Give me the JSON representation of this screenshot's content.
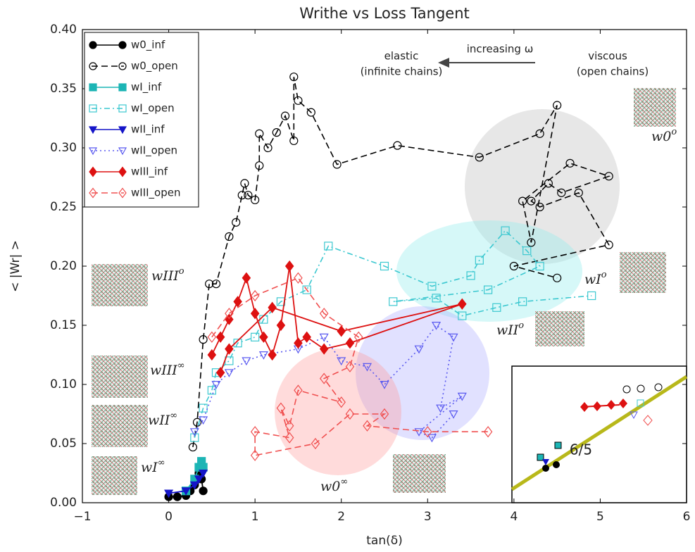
{
  "chart_data": {
    "type": "line",
    "title": "Writhe vs Loss Tangent",
    "x_label": "tan(δ)",
    "y_label": "< |Wr| >",
    "xlim": [
      -1,
      6
    ],
    "ylim": [
      0,
      0.4
    ],
    "xticks": [
      {
        "value": -1,
        "label": "−1"
      },
      0,
      1,
      2,
      3,
      4,
      5,
      6
    ],
    "yticks": [
      {
        "value": 0,
        "label": "0.00"
      },
      {
        "value": 0.05,
        "label": "0.05"
      },
      {
        "value": 0.1,
        "label": "0.10"
      },
      {
        "value": 0.15,
        "label": "0.15"
      },
      {
        "value": 0.2,
        "label": "0.20"
      },
      {
        "value": 0.25,
        "label": "0.25"
      },
      {
        "value": 0.3,
        "label": "0.30"
      },
      {
        "value": 0.35,
        "label": "0.35"
      },
      {
        "value": 0.4,
        "label": "0.40"
      }
    ],
    "legend": "upper left",
    "series": [
      {
        "name": "w0_inf",
        "color": "#000000",
        "marker": "circle",
        "filled": true,
        "linestyle": "solid",
        "x": [
          0,
          0.1,
          0.2,
          0.25,
          0.3,
          0.32,
          0.35,
          0.38,
          0.4
        ],
        "values": [
          0.005,
          0.005,
          0.006,
          0.01,
          0.015,
          0.02,
          0.025,
          0.02,
          0.01
        ]
      },
      {
        "name": "w0_open",
        "color": "#000000",
        "marker": "circle",
        "filled": false,
        "linestyle": "dashed",
        "x": [
          0.28,
          0.33,
          0.4,
          0.47,
          0.55,
          0.7,
          0.78,
          0.85,
          0.88,
          0.92,
          1.0,
          1.05,
          1.05,
          1.15,
          1.25,
          1.35,
          1.45,
          1.45,
          1.5,
          1.65,
          1.95,
          2.65,
          3.6,
          4.3,
          4.5,
          4.2,
          4.1,
          4.65,
          5.1,
          4.55,
          4.4,
          4.2,
          4.3,
          4.75,
          5.1,
          4.0,
          4.5
        ],
        "values": [
          0.047,
          0.068,
          0.138,
          0.185,
          0.185,
          0.225,
          0.237,
          0.26,
          0.27,
          0.26,
          0.256,
          0.285,
          0.312,
          0.3,
          0.313,
          0.327,
          0.306,
          0.36,
          0.34,
          0.33,
          0.286,
          0.302,
          0.292,
          0.312,
          0.336,
          0.22,
          0.255,
          0.287,
          0.276,
          0.262,
          0.27,
          0.255,
          0.25,
          0.262,
          0.218,
          0.2,
          0.19
        ]
      },
      {
        "name": "wI_inf",
        "color": "#1cb5b5",
        "marker": "square",
        "filled": true,
        "linestyle": "solid",
        "x": [
          0.2,
          0.3,
          0.35,
          0.38,
          0.4
        ],
        "values": [
          0.01,
          0.02,
          0.03,
          0.035,
          0.03
        ]
      },
      {
        "name": "wI_open",
        "color": "#3cc8d0",
        "marker": "square",
        "filled": false,
        "linestyle": "dashdot",
        "x": [
          0.3,
          0.4,
          0.5,
          0.55,
          0.7,
          0.8,
          1.0,
          1.1,
          1.3,
          1.6,
          1.85,
          2.5,
          3.05,
          3.5,
          3.6,
          3.9,
          4.15,
          4.3,
          3.7,
          2.6,
          3.1,
          3.4,
          3.8,
          4.1,
          4.9
        ],
        "values": [
          0.055,
          0.08,
          0.095,
          0.11,
          0.12,
          0.135,
          0.14,
          0.155,
          0.17,
          0.18,
          0.217,
          0.2,
          0.183,
          0.192,
          0.205,
          0.23,
          0.213,
          0.2,
          0.18,
          0.17,
          0.173,
          0.158,
          0.165,
          0.17,
          0.175
        ]
      },
      {
        "name": "wII_inf",
        "color": "#1515c8",
        "marker": "triangle",
        "filled": true,
        "linestyle": "solid",
        "x": [
          0,
          0.2,
          0.3,
          0.35,
          0.4
        ],
        "values": [
          0.008,
          0.01,
          0.015,
          0.02,
          0.025
        ]
      },
      {
        "name": "wII_open",
        "color": "#5a5af0",
        "marker": "triangle",
        "filled": false,
        "linestyle": "dotted",
        "x": [
          0.3,
          0.4,
          0.55,
          0.7,
          0.9,
          1.1,
          1.5,
          1.8,
          2.0,
          2.3,
          2.5,
          2.9,
          3.1,
          3.3,
          3.15,
          3.4,
          2.9,
          3.05,
          3.3
        ],
        "values": [
          0.06,
          0.07,
          0.1,
          0.11,
          0.12,
          0.125,
          0.13,
          0.14,
          0.12,
          0.115,
          0.1,
          0.13,
          0.15,
          0.14,
          0.08,
          0.09,
          0.06,
          0.055,
          0.075
        ]
      },
      {
        "name": "wIII_inf",
        "color": "#dd1111",
        "marker": "diamond",
        "filled": true,
        "linestyle": "solid",
        "x": [
          0.5,
          0.6,
          0.7,
          0.8,
          0.9,
          1.0,
          1.1,
          1.2,
          1.3,
          1.4,
          1.5,
          1.6,
          1.8,
          2.1,
          3.4,
          2.0,
          1.2,
          0.7,
          0.6
        ],
        "values": [
          0.125,
          0.14,
          0.155,
          0.17,
          0.19,
          0.16,
          0.14,
          0.125,
          0.15,
          0.2,
          0.135,
          0.14,
          0.13,
          0.135,
          0.168,
          0.145,
          0.165,
          0.13,
          0.11
        ]
      },
      {
        "name": "wIII_open",
        "color": "#f05050",
        "marker": "diamond",
        "filled": false,
        "linestyle": "dashed",
        "x": [
          0.5,
          0.7,
          1.0,
          1.5,
          1.8,
          2.2,
          2.1,
          1.8,
          2.0,
          1.5,
          1.4,
          1.3,
          1.4,
          1.0,
          1.0,
          1.7,
          2.1,
          2.5,
          2.3,
          3.0,
          3.7
        ],
        "values": [
          0.14,
          0.16,
          0.175,
          0.19,
          0.16,
          0.14,
          0.115,
          0.105,
          0.085,
          0.095,
          0.065,
          0.08,
          0.055,
          0.06,
          0.04,
          0.05,
          0.075,
          0.075,
          0.065,
          0.06,
          0.06
        ]
      }
    ],
    "annotations": {
      "elastic": [
        "elastic",
        "(infinite chains)"
      ],
      "arrow": "increasing ω",
      "viscous": [
        "viscous",
        "(open chains)"
      ],
      "inset_slope": "6/5",
      "groups": [
        {
          "base": "w0",
          "sup": "o"
        },
        {
          "base": "wI",
          "sup": "o"
        },
        {
          "base": "wII",
          "sup": "o"
        },
        {
          "base": "wIII",
          "sup": "o"
        },
        {
          "base": "wIII",
          "sup": "∞"
        },
        {
          "base": "wII",
          "sup": "∞"
        },
        {
          "base": "wI",
          "sup": "∞"
        },
        {
          "base": "w0",
          "sup": "∞"
        }
      ]
    }
  }
}
